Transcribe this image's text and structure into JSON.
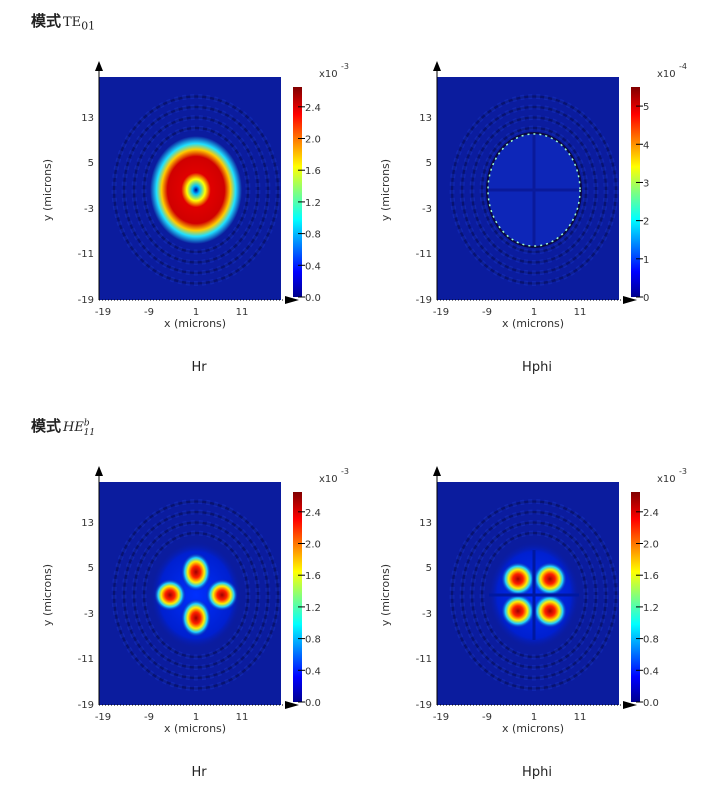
{
  "sections": [
    {
      "title_prefix": "模式",
      "mode_main": "TE",
      "mode_sub": "01",
      "mode_sup": "",
      "plots": [
        {
          "caption": "Hr",
          "pattern": "ring",
          "multiplier": "x10",
          "exponent": "-3",
          "cbar_ticks": [
            "2.4",
            "2.0",
            "1.6",
            "1.2",
            "0.8",
            "0.4",
            "0.0"
          ],
          "cbar_max": 2.65
        },
        {
          "caption": "Hphi",
          "pattern": "edge",
          "multiplier": "x10",
          "exponent": "-4",
          "cbar_ticks": [
            "5",
            "4",
            "3",
            "2",
            "1",
            "0"
          ],
          "cbar_max": 5.5
        }
      ]
    },
    {
      "title_prefix": "模式",
      "mode_main": "HE",
      "mode_sub": "11",
      "mode_sup": "b",
      "plots": [
        {
          "caption": "Hr",
          "pattern": "lobes-cross",
          "multiplier": "x10",
          "exponent": "-3",
          "cbar_ticks": [
            "2.4",
            "2.0",
            "1.6",
            "1.2",
            "0.8",
            "0.4",
            "0.0"
          ],
          "cbar_max": 2.65
        },
        {
          "caption": "Hphi",
          "pattern": "lobes-diag",
          "multiplier": "x10",
          "exponent": "-3",
          "cbar_ticks": [
            "2.4",
            "2.0",
            "1.6",
            "1.2",
            "0.8",
            "0.4",
            "0.0"
          ],
          "cbar_max": 2.65
        }
      ]
    }
  ],
  "axes": {
    "xlabel": "x (microns)",
    "ylabel": "y (microns)",
    "xticks": [
      "-19",
      "-9",
      "1",
      "11"
    ],
    "yticks": [
      "13",
      "5",
      "-3",
      "-11",
      "-19"
    ]
  },
  "colors": {
    "background": "#0b1c9e",
    "ring": "#081060"
  }
}
